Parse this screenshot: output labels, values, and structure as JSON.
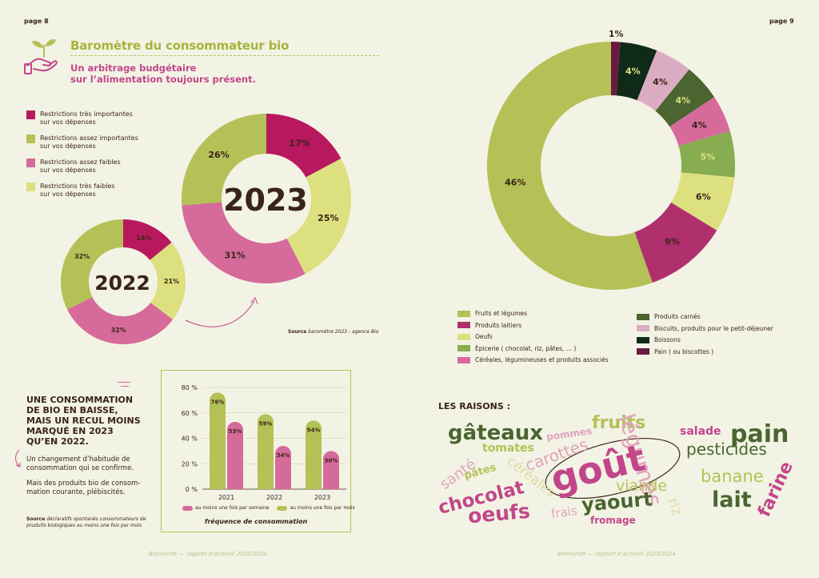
{
  "left_page": {
    "page_number": "page 8",
    "title": "Baromètre du consommateur bio",
    "subtitle_line1": "Un arbitrage budgétaire",
    "subtitle_line2": "sur l’alimentation toujours présent.",
    "legend": [
      {
        "line1": "Restrictions très importantes",
        "line2": "sur vos dépenses",
        "color": "#b8185e"
      },
      {
        "line1": "Restrictions assez importantes",
        "line2": "sur vos dépenses",
        "color": "#b4c157"
      },
      {
        "line1": "Restrictions assez faibles",
        "line2": "sur vos dépenses",
        "color": "#d66a9a"
      },
      {
        "line1": "Restrictions très faibles",
        "line2": "sur vos dépenses",
        "color": "#dde07f"
      }
    ],
    "source_label": "Source",
    "source_text": "baromètre 2023 - agence Bio",
    "headline": [
      "Une consommation",
      "de bio en baisse,",
      "mais un recul moins",
      "marqué en 2023",
      "qu’en 2022."
    ],
    "para1": [
      "Un changement d’habitude de",
      "consommation qui se confirme."
    ],
    "para2": [
      "Mais des produits bio de consom-",
      "mation courante, plébiscités."
    ],
    "bottom_source_label": "Source",
    "bottom_source_text": [
      "déclaratifs spontanés consommateurs de",
      "produits biologiques au moins une fois par mois"
    ],
    "footer": "Biomonde — rapport d’activité 2023/2024"
  },
  "right_page": {
    "page_number": "page 9",
    "legend_left": [
      {
        "label": "Fruits et légumes",
        "color": "#b4c157"
      },
      {
        "label": "Produits laitiers",
        "color": "#b0306e"
      },
      {
        "label": "Oeufs",
        "color": "#dde07f"
      },
      {
        "label": "Épicerie ( chocolat, riz, pâtes, ... )",
        "color": "#88ac50"
      },
      {
        "label": "Céréales, légumineuses et produits associés",
        "color": "#d66a9a"
      }
    ],
    "legend_right": [
      {
        "label": "Produits carnés",
        "color": "#4a6530"
      },
      {
        "label": "Biscuits, produits pour le petit-déjeuner",
        "color": "#dcadc2"
      },
      {
        "label": "Boissons",
        "color": "#0f2a18"
      },
      {
        "label": "Pain ( ou biscottes )",
        "color": "#6a1a40"
      }
    ],
    "raisons_title": "LES RAISONS :",
    "words": [
      {
        "text": "gâteaux",
        "color": "#4a6530"
      },
      {
        "text": "pommes",
        "color": "#e2a2bd"
      },
      {
        "text": "fruits",
        "color": "#b4c157"
      },
      {
        "text": "légumes",
        "color": "#e2a2bd"
      },
      {
        "text": "salade",
        "color": "#c2468a"
      },
      {
        "text": "pain",
        "color": "#4a6530"
      },
      {
        "text": "tomates",
        "color": "#b4c157"
      },
      {
        "text": "carottes",
        "color": "#e2a2bd"
      },
      {
        "text": "pesticides",
        "color": "#4a6530"
      },
      {
        "text": "santé",
        "color": "#e2a2bd"
      },
      {
        "text": "pâtes",
        "color": "#b4c157"
      },
      {
        "text": "céréales",
        "color": "#dcdca0"
      },
      {
        "text": "goût",
        "color": "#c2468a"
      },
      {
        "text": "banane",
        "color": "#b4c157"
      },
      {
        "text": "chocolat",
        "color": "#c2468a"
      },
      {
        "text": "viande",
        "color": "#b4c157"
      },
      {
        "text": "lait",
        "color": "#4a6530"
      },
      {
        "text": "farine",
        "color": "#c2468a"
      },
      {
        "text": "oeufs",
        "color": "#c2468a"
      },
      {
        "text": "frais",
        "color": "#e2a2bd"
      },
      {
        "text": "yaourt",
        "color": "#4a6530"
      },
      {
        "text": "riz",
        "color": "#dcdca0"
      },
      {
        "text": "fromage",
        "color": "#c2468a"
      }
    ],
    "footer": "Biomonde — rapport d’activité 2023/2024"
  },
  "chart_data": [
    {
      "type": "pie",
      "title": "2022",
      "labels": [
        "Restrictions très importantes",
        "Restrictions assez faibles",
        "Restrictions assez importantes",
        "Restrictions très faibles"
      ],
      "values": [
        14,
        32,
        32,
        21
      ],
      "display_order": [
        {
          "v": 14,
          "label": "14%",
          "color": "#b8185e"
        },
        {
          "v": 21,
          "label": "21%",
          "color": "#dde07f"
        },
        {
          "v": 32,
          "label": "32%",
          "color": "#d66a9a"
        },
        {
          "v": 32,
          "label": "32%",
          "color": "#b4c157"
        }
      ]
    },
    {
      "type": "pie",
      "title": "2023",
      "display_order": [
        {
          "v": 17,
          "label": "17%",
          "color": "#b8185e"
        },
        {
          "v": 25,
          "label": "25%",
          "color": "#dde07f"
        },
        {
          "v": 31,
          "label": "31%",
          "color": "#d66a9a"
        },
        {
          "v": 26,
          "label": "26%",
          "color": "#b4c157"
        }
      ]
    },
    {
      "type": "bar",
      "categories": [
        "2021",
        "2022",
        "2023"
      ],
      "series": [
        {
          "name": "au moins une fois par mois",
          "values": [
            76,
            59,
            54
          ],
          "color": "#b4c157"
        },
        {
          "name": "au moins une fois par semaine",
          "values": [
            53,
            34,
            30
          ],
          "color": "#d66a9a"
        }
      ],
      "value_labels": [
        [
          "76%",
          "59%",
          "54%"
        ],
        [
          "53%",
          "34%",
          "30%"
        ]
      ],
      "y_ticks": [
        "0 %",
        "20 %",
        "40 %",
        "60 %",
        "80 %"
      ],
      "ylim": [
        0,
        80
      ],
      "xlabel": "fréquence de consommation",
      "legend": [
        "au moins une fois par semaine",
        "au moins une fois par mois"
      ]
    },
    {
      "type": "pie",
      "segments": [
        {
          "label": "1%",
          "value": 1,
          "color": "#6a1a40",
          "text": "#3a2418"
        },
        {
          "label": "4%",
          "value": 4,
          "color": "#0f2a18",
          "text": "#dde07f"
        },
        {
          "label": "4%",
          "value": 4,
          "color": "#dcadc2",
          "text": "#3a2418"
        },
        {
          "label": "4%",
          "value": 4,
          "color": "#4a6530",
          "text": "#dde07f"
        },
        {
          "label": "4%",
          "value": 4,
          "color": "#d66a9a",
          "text": "#3a2418"
        },
        {
          "label": "5%",
          "value": 5,
          "color": "#88ac50",
          "text": "#dde07f"
        },
        {
          "label": "6%",
          "value": 6,
          "color": "#dde07f",
          "text": "#3a2418"
        },
        {
          "label": "9%",
          "value": 9,
          "color": "#b0306e",
          "text": "#3a2418"
        },
        {
          "label": "46%",
          "value": 46,
          "color": "#b4c157",
          "text": "#3a2418"
        }
      ]
    }
  ]
}
